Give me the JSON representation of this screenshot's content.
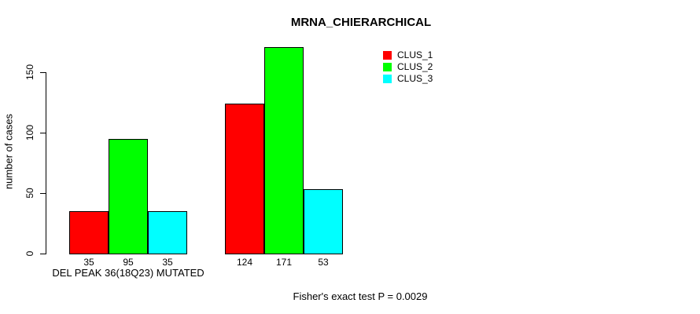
{
  "chart_data": {
    "type": "bar",
    "title": "MRNA_CHIERARCHICAL",
    "ylabel": "number of cases",
    "xlabel": "DEL PEAK 36(18Q23) MUTATED",
    "footnote": "Fisher's exact test P = 0.0029",
    "yticks": [
      0,
      50,
      100,
      150
    ],
    "ylim": [
      0,
      175
    ],
    "grid": false,
    "legend_position": "top-right",
    "bar_value_labels_shown": true,
    "series": [
      {
        "name": "CLUS_1",
        "color": "#ff0000",
        "values": [
          35,
          124
        ]
      },
      {
        "name": "CLUS_2",
        "color": "#00ff00",
        "values": [
          95,
          171
        ]
      },
      {
        "name": "CLUS_3",
        "color": "#00ffff",
        "values": [
          35,
          53
        ]
      }
    ],
    "groups": [
      {
        "bar_labels": [
          "35",
          "95",
          "35"
        ]
      },
      {
        "bar_labels": [
          "124",
          "171",
          "53"
        ]
      }
    ]
  }
}
